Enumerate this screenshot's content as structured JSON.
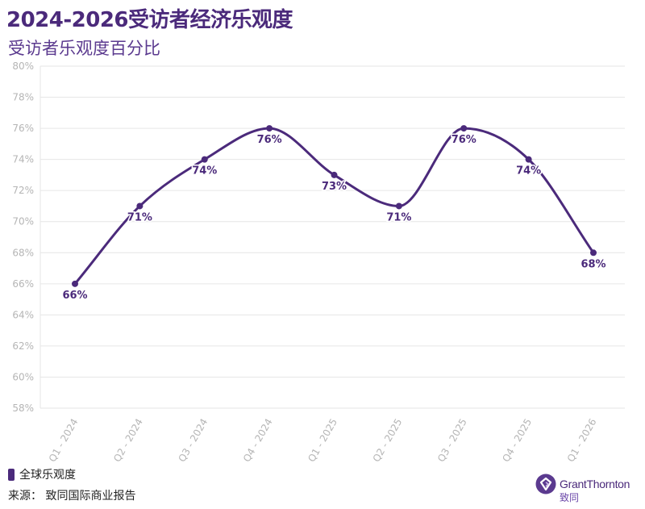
{
  "title": "2024-2026受访者经济乐观度",
  "subtitle": "受访者乐观度百分比",
  "legend_label": "全球乐观度",
  "source": "来源： 致同国际商业报告",
  "brand": {
    "name": "GrantThornton",
    "cn": "致同"
  },
  "colors": {
    "series": "#4b2a7b",
    "grid": "#e6e6e6",
    "axis_text": "#b5b5b5"
  },
  "chart_data": {
    "type": "line",
    "title": "2024-2026受访者经济乐观度",
    "ylabel": "受访者乐观度百分比",
    "xlabel": "",
    "categories": [
      "Q1 - 2024",
      "Q2 - 2024",
      "Q3 - 2024",
      "Q4 - 2024",
      "Q1 - 2025",
      "Q2 - 2025",
      "Q3 - 2025",
      "Q4 - 2025",
      "Q1 - 2026"
    ],
    "series": [
      {
        "name": "全球乐观度",
        "values": [
          66,
          71,
          74,
          76,
          73,
          71,
          76,
          74,
          68
        ],
        "labels": [
          "66%",
          "71%",
          "74%",
          "76%",
          "73%",
          "71%",
          "76%",
          "74%",
          "68%"
        ]
      }
    ],
    "yticks": [
      58,
      60,
      62,
      64,
      66,
      68,
      70,
      72,
      74,
      76,
      78,
      80
    ],
    "ytick_labels": [
      "58%",
      "60%",
      "62%",
      "64%",
      "66%",
      "68%",
      "70%",
      "72%",
      "74%",
      "76%",
      "78%",
      "80%"
    ],
    "ylim": [
      58,
      80
    ],
    "grid": true,
    "smooth": true
  }
}
